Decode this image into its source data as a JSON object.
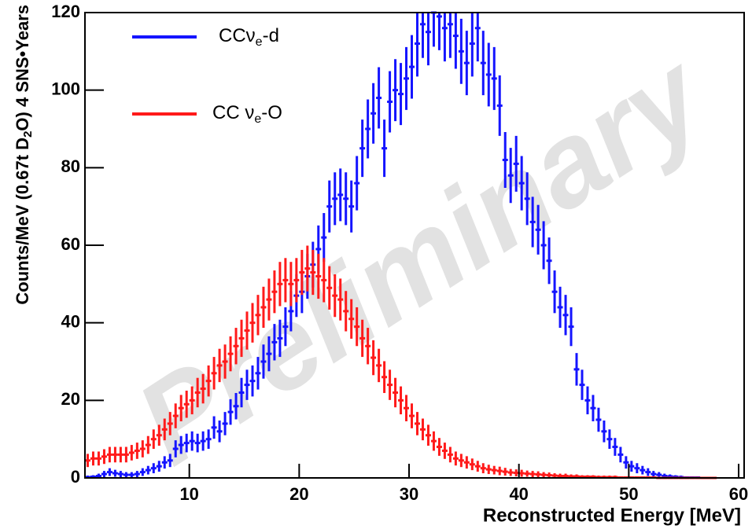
{
  "chart_data": {
    "type": "histogram",
    "xlabel": "Reconstructed Energy [MeV]",
    "ylabel": [
      "Counts/MeV (0.67t D",
      "2",
      "O) 4 SNS•Years"
    ],
    "watermark": "Preliminary",
    "xlim": [
      0.5,
      60.5
    ],
    "ylim": [
      0,
      120
    ],
    "xticks": [
      10,
      20,
      30,
      40,
      50,
      60
    ],
    "yticks": [
      0,
      20,
      40,
      60,
      80,
      100,
      120
    ],
    "legend": "upper left",
    "bins": [
      0.5,
      1,
      1.5,
      2,
      2.5,
      3,
      3.5,
      4,
      4.5,
      5,
      5.5,
      6,
      6.5,
      7,
      7.5,
      8,
      8.5,
      9,
      9.5,
      10,
      10.5,
      11,
      11.5,
      12,
      12.5,
      13,
      13.5,
      14,
      14.5,
      15,
      15.5,
      16,
      16.5,
      17,
      17.5,
      18,
      18.5,
      19,
      19.5,
      20,
      20.5,
      21,
      21.5,
      22,
      22.5,
      23,
      23.5,
      24,
      24.5,
      25,
      25.5,
      26,
      26.5,
      27,
      27.5,
      28,
      28.5,
      29,
      29.5,
      30,
      30.5,
      31,
      31.5,
      32,
      32.5,
      33,
      33.5,
      34,
      34.5,
      35,
      35.5,
      36,
      36.5,
      37,
      37.5,
      38,
      38.5,
      39,
      39.5,
      40,
      40.5,
      41,
      41.5,
      42,
      42.5,
      43,
      43.5,
      44,
      44.5,
      45,
      45.5,
      46,
      46.5,
      47,
      47.5,
      48,
      48.5,
      49,
      49.5,
      50,
      50.5,
      51,
      51.5,
      52,
      52.5,
      53,
      53.5,
      54,
      54.5,
      55,
      55.5,
      56,
      56.5,
      57,
      57.5,
      58
    ],
    "series": [
      {
        "name": [
          "CCν",
          "e",
          "-d"
        ],
        "color": "#1414ff",
        "values": [
          0.2,
          0.3,
          0.5,
          1,
          1.5,
          1.2,
          1,
          0.8,
          0.8,
          1,
          1.5,
          2,
          2.5,
          3,
          4,
          4.5,
          7.5,
          8.5,
          9,
          9.5,
          9,
          9.5,
          10,
          13,
          12,
          14,
          17,
          18.5,
          22,
          24,
          25,
          27,
          30,
          32,
          35,
          36,
          39,
          43,
          47,
          48,
          52,
          55,
          59,
          62,
          70,
          72,
          73,
          72,
          70,
          76,
          85,
          90,
          94,
          98,
          85,
          97,
          100,
          99,
          103,
          106,
          112,
          117,
          115,
          120,
          119,
          116,
          117,
          114,
          110,
          107,
          112,
          116,
          107,
          104,
          103,
          96,
          82,
          78,
          81,
          76,
          72,
          66,
          64,
          60,
          56,
          48,
          44,
          42,
          39,
          28,
          24,
          20,
          18,
          15,
          12,
          10,
          8,
          6,
          4,
          3,
          2.5,
          2,
          1.5,
          1,
          0.8,
          0.5,
          0.4,
          0.3,
          0.2,
          0.1,
          0.1,
          0.1,
          0,
          0,
          0
        ],
        "errors": [
          0.4,
          0.4,
          0.6,
          0.8,
          1,
          0.9,
          0.8,
          0.7,
          0.7,
          0.8,
          1,
          1.1,
          1.3,
          1.4,
          1.6,
          1.7,
          2.2,
          2.3,
          2.4,
          2.5,
          2.4,
          2.5,
          2.5,
          2.9,
          2.8,
          3,
          3.3,
          3.4,
          3.8,
          3.9,
          4,
          4.2,
          4.4,
          4.5,
          4.7,
          4.8,
          5,
          5.2,
          5.5,
          5.5,
          5.8,
          5.9,
          6.1,
          6.3,
          6.7,
          6.8,
          6.8,
          6.8,
          6.7,
          7,
          7.4,
          7.6,
          7.8,
          7.9,
          7.4,
          7.9,
          8,
          8,
          8.1,
          8.2,
          8.5,
          8.7,
          8.6,
          8.8,
          8.7,
          8.6,
          8.7,
          8.5,
          8.4,
          8.3,
          8.5,
          8.6,
          8.3,
          8.2,
          8.1,
          7.8,
          7.2,
          7.1,
          7.2,
          7,
          6.8,
          6.5,
          6.4,
          6.2,
          6,
          5.5,
          5.3,
          5.2,
          5,
          4.2,
          3.9,
          3.6,
          3.4,
          3.1,
          2.8,
          2.5,
          2.3,
          2,
          1.6,
          1.4,
          1.3,
          1.1,
          1,
          0.8,
          0.7,
          0.6,
          0.5,
          0.4,
          0.4,
          0.3,
          0.3,
          0.3,
          0,
          0,
          0
        ]
      },
      {
        "name": [
          "CC ν",
          "e",
          "-O"
        ],
        "color": "#ff1a1a",
        "values": [
          4.5,
          5,
          5,
          5.5,
          6,
          6,
          6,
          6,
          6.5,
          7,
          7.5,
          8.5,
          10,
          11,
          12.5,
          14,
          16,
          18,
          19,
          20,
          22,
          23,
          25,
          27,
          29,
          30,
          32,
          34,
          36,
          38,
          40,
          42,
          44,
          46,
          48,
          50,
          51,
          50,
          51,
          53,
          54,
          53,
          52,
          51,
          49,
          47,
          46,
          43,
          41,
          39,
          36,
          34,
          31,
          29,
          26,
          24,
          22,
          20,
          18,
          16,
          14,
          12.5,
          11,
          9.5,
          8,
          7,
          6,
          5,
          4.5,
          4,
          3.5,
          3,
          2.5,
          2.2,
          2,
          1.8,
          1.6,
          1.4,
          1.3,
          1.2,
          1.1,
          1,
          0.9,
          0.8,
          0.7,
          0.6,
          0.5,
          0.5,
          0.4,
          0.4,
          0.3,
          0.3,
          0.3,
          0.2,
          0.2,
          0.2,
          0.2,
          0.1,
          0.1,
          0.1,
          0.1,
          0.1,
          0.1,
          0.1,
          0,
          0,
          0,
          0,
          0,
          0,
          0,
          0,
          0,
          0,
          0
        ],
        "errors": [
          1.7,
          1.8,
          1.8,
          1.9,
          2,
          2,
          2,
          2,
          2,
          2.1,
          2.2,
          2.3,
          2.5,
          2.7,
          2.8,
          3,
          3.2,
          3.4,
          3.5,
          3.6,
          3.8,
          3.8,
          4,
          4.2,
          4.3,
          4.4,
          4.5,
          4.7,
          4.8,
          4.9,
          5.1,
          5.2,
          5.3,
          5.4,
          5.5,
          5.7,
          5.7,
          5.7,
          5.7,
          5.8,
          5.9,
          5.8,
          5.8,
          5.7,
          5.6,
          5.5,
          5.4,
          5.2,
          5.1,
          5,
          4.8,
          4.7,
          4.5,
          4.3,
          4.1,
          3.9,
          3.8,
          3.6,
          3.4,
          3.2,
          3,
          2.8,
          2.7,
          2.5,
          2.3,
          2.1,
          2,
          1.8,
          1.7,
          1.6,
          1.5,
          1.4,
          1.3,
          1.2,
          1.1,
          1.1,
          1,
          0.9,
          0.9,
          0.9,
          0.8,
          0.8,
          0.8,
          0.7,
          0.7,
          0.6,
          0.6,
          0.6,
          0.5,
          0.5,
          0.4,
          0.4,
          0.4,
          0.4,
          0.4,
          0.4,
          0.4,
          0.3,
          0.3,
          0.3,
          0.3,
          0.3,
          0.3,
          0.3,
          0,
          0,
          0,
          0,
          0,
          0,
          0,
          0,
          0,
          0,
          0
        ]
      }
    ]
  }
}
